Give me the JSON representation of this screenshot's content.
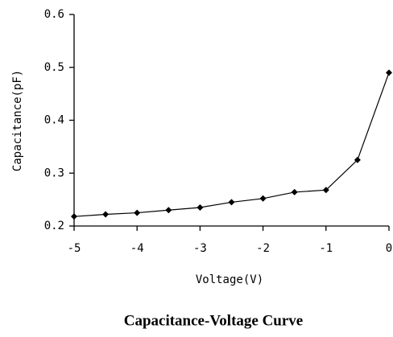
{
  "chart_data": {
    "type": "line",
    "title": "Capacitance-Voltage Curve",
    "x_label": "Voltage(V)",
    "y_label": "Capacitance(pF)",
    "x": [
      -5,
      -4.5,
      -4,
      -3.5,
      -3,
      -2.5,
      -2,
      -1.5,
      -1,
      -0.5,
      0
    ],
    "series": [
      {
        "name": "Capacitance",
        "color": "#000000",
        "values": [
          0.218,
          0.222,
          0.225,
          0.23,
          0.235,
          0.245,
          0.252,
          0.264,
          0.268,
          0.325,
          0.49
        ]
      }
    ],
    "xlim": [
      -5,
      0
    ],
    "xticks": [
      -5,
      -4,
      -3,
      -2,
      -1,
      0
    ],
    "ylim": [
      0.2,
      0.6
    ],
    "yticks": [
      0.2,
      0.3,
      0.4,
      0.5,
      0.6
    ],
    "grid": false,
    "legend": false
  }
}
